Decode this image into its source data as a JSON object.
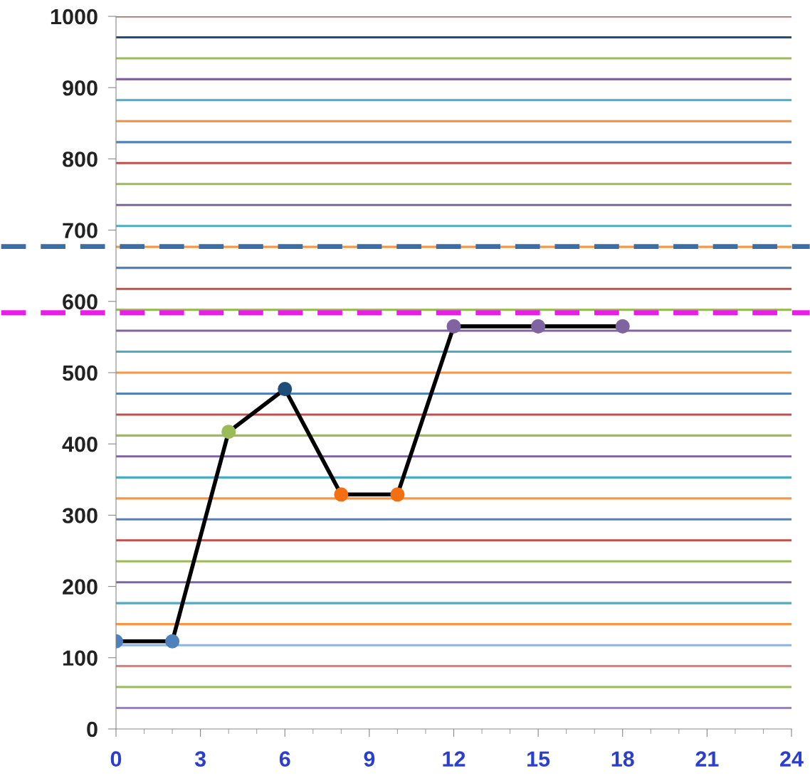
{
  "chart_data": {
    "type": "line",
    "x": [
      0,
      2,
      4,
      6,
      8,
      10,
      12,
      15,
      18
    ],
    "series": [
      {
        "color": "#000000",
        "colors": [
          "#4f81bd",
          "#4f81bd",
          "#9bbb59",
          "#1f4e79",
          "#f36f13",
          "#f36f13",
          "#8064a2",
          "#8064a2",
          "#8064a2"
        ],
        "values": [
          123,
          123,
          417,
          477,
          329,
          329,
          565,
          565,
          565
        ]
      }
    ],
    "marker": "circle",
    "line_style": "solid",
    "xlim": [
      0,
      24
    ],
    "xticks": [
      0,
      3,
      6,
      9,
      12,
      15,
      18,
      21,
      24
    ],
    "ylim": [
      0,
      1000
    ],
    "yticks": [
      0,
      100,
      200,
      300,
      400,
      500,
      600,
      700,
      800,
      900,
      1000
    ],
    "grid": false,
    "legend": false,
    "ref_lines": [
      {
        "axis": "y",
        "value": 677,
        "color": "#3a6ea5",
        "line_style": "dashed"
      },
      {
        "axis": "y",
        "value": 584,
        "color": "#e81ee8",
        "line_style": "dashed"
      },
      {
        "axis": "y",
        "value": 29.4,
        "color": "#9a86bf"
      },
      {
        "axis": "y",
        "value": 58.8,
        "color": "#9bbb59"
      },
      {
        "axis": "y",
        "value": 88.2,
        "color": "#d9827f"
      },
      {
        "axis": "y",
        "value": 117.6,
        "color": "#8eb4e3"
      },
      {
        "axis": "y",
        "value": 147.1,
        "color": "#f79646"
      },
      {
        "axis": "y",
        "value": 176.5,
        "color": "#4bacc6"
      },
      {
        "axis": "y",
        "value": 205.9,
        "color": "#8064a2"
      },
      {
        "axis": "y",
        "value": 235.3,
        "color": "#9bbb59"
      },
      {
        "axis": "y",
        "value": 264.7,
        "color": "#c0504d"
      },
      {
        "axis": "y",
        "value": 294.1,
        "color": "#4f81bd"
      },
      {
        "axis": "y",
        "value": 323.5,
        "color": "#f79646"
      },
      {
        "axis": "y",
        "value": 352.9,
        "color": "#4bacc6"
      },
      {
        "axis": "y",
        "value": 382.4,
        "color": "#8064a2"
      },
      {
        "axis": "y",
        "value": 411.8,
        "color": "#9bbb59"
      },
      {
        "axis": "y",
        "value": 441.2,
        "color": "#c0504d"
      },
      {
        "axis": "y",
        "value": 470.6,
        "color": "#4f81bd"
      },
      {
        "axis": "y",
        "value": 500.0,
        "color": "#f79646"
      },
      {
        "axis": "y",
        "value": 529.4,
        "color": "#4bacc6"
      },
      {
        "axis": "y",
        "value": 558.8,
        "color": "#8064a2"
      },
      {
        "axis": "y",
        "value": 588.2,
        "color": "#9bbb59"
      },
      {
        "axis": "y",
        "value": 617.6,
        "color": "#c0504d"
      },
      {
        "axis": "y",
        "value": 647.1,
        "color": "#4f81bd"
      },
      {
        "axis": "y",
        "value": 676.5,
        "color": "#f79646"
      },
      {
        "axis": "y",
        "value": 705.9,
        "color": "#4bacc6"
      },
      {
        "axis": "y",
        "value": 735.3,
        "color": "#8064a2"
      },
      {
        "axis": "y",
        "value": 764.7,
        "color": "#9bbb59"
      },
      {
        "axis": "y",
        "value": 794.1,
        "color": "#c0504d"
      },
      {
        "axis": "y",
        "value": 823.5,
        "color": "#4f81bd"
      },
      {
        "axis": "y",
        "value": 852.9,
        "color": "#f79646"
      },
      {
        "axis": "y",
        "value": 882.4,
        "color": "#4bacc6"
      },
      {
        "axis": "y",
        "value": 911.8,
        "color": "#8064a2"
      },
      {
        "axis": "y",
        "value": 941.2,
        "color": "#9bbb59"
      },
      {
        "axis": "y",
        "value": 970.6,
        "color": "#1f4e79"
      },
      {
        "axis": "y",
        "value": 1000,
        "color": "#c0504d"
      }
    ]
  }
}
